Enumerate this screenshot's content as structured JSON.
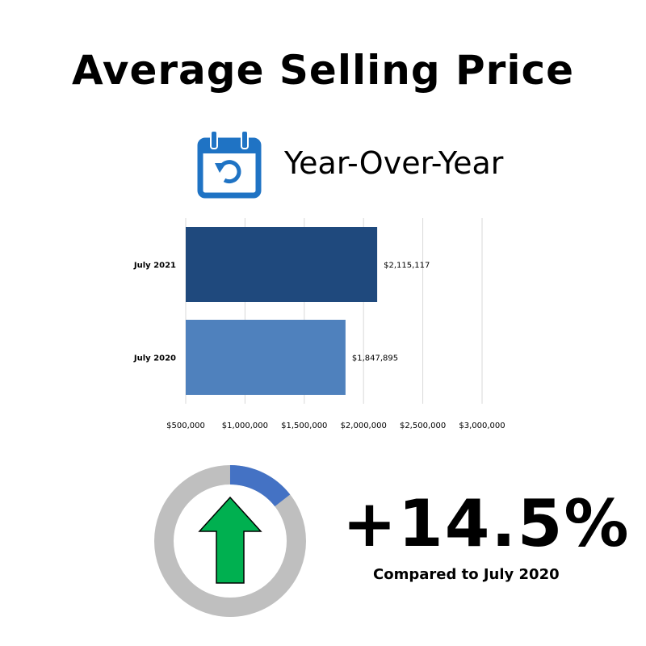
{
  "title": "Average Selling Price",
  "subtitle": "Year-Over-Year",
  "icons": {
    "calendar": "calendar-refresh-icon",
    "arrow": "arrow-up-icon"
  },
  "colors": {
    "bar_2021": "#1F497D",
    "bar_2020": "#4F81BD",
    "icon_blue": "#1F73C4",
    "arrow_green": "#00B050",
    "donut_track": "#BFBFBF",
    "donut_fill": "#4472C4"
  },
  "chart_data": {
    "type": "bar",
    "orientation": "horizontal",
    "categories": [
      "July 2021",
      "July  2020"
    ],
    "values": [
      2115117,
      1847895
    ],
    "data_labels": [
      "$2,115,117",
      "$1,847,895"
    ],
    "xlim": [
      500000,
      3000000
    ],
    "x_ticks": [
      500000,
      1000000,
      1500000,
      2000000,
      2500000,
      3000000
    ],
    "x_tick_labels": [
      "$500,000",
      "$1,000,000",
      "$1,500,000",
      "$2,000,000",
      "$2,500,000",
      "$3,000,000"
    ],
    "grid": true,
    "legend": "none"
  },
  "summary": {
    "change": "+14.5%",
    "change_fraction": 0.145,
    "caption": "Compared to July 2020"
  }
}
